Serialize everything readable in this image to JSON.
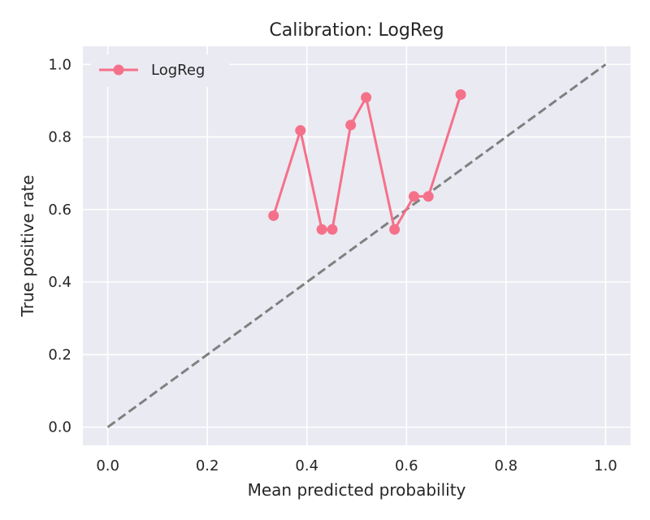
{
  "chart_data": {
    "type": "line",
    "title": "Calibration: LogReg",
    "xlabel": "Mean predicted probability",
    "ylabel": "True positive rate",
    "xlim": [
      -0.05,
      1.05
    ],
    "ylim": [
      -0.05,
      1.05
    ],
    "xticks": [
      0.0,
      0.2,
      0.4,
      0.6,
      0.8,
      1.0
    ],
    "xtick_labels": [
      "0.0",
      "0.2",
      "0.4",
      "0.6",
      "0.8",
      "1.0"
    ],
    "yticks": [
      0.0,
      0.2,
      0.4,
      0.6,
      0.8,
      1.0
    ],
    "ytick_labels": [
      "0.0",
      "0.2",
      "0.4",
      "0.6",
      "0.8",
      "1.0"
    ],
    "grid": true,
    "legend_position": "top-left",
    "series": [
      {
        "name": "LogReg",
        "color": "#f5718a",
        "marker": "circle",
        "x": [
          0.333,
          0.387,
          0.43,
          0.451,
          0.488,
          0.519,
          0.576,
          0.615,
          0.644,
          0.709
        ],
        "y": [
          0.583,
          0.818,
          0.545,
          0.545,
          0.833,
          0.909,
          0.545,
          0.636,
          0.636,
          0.917
        ]
      }
    ],
    "reference_line": {
      "x": [
        0.0,
        1.0
      ],
      "y": [
        0.0,
        1.0
      ],
      "color": "#808080",
      "style": "dashed"
    },
    "plot_background": "#eaeaf2",
    "grid_color": "#ffffff"
  }
}
